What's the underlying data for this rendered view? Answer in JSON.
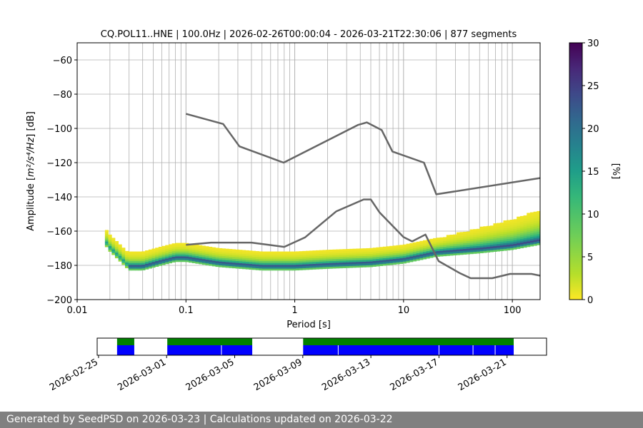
{
  "chart_data": [
    {
      "type": "heatmap",
      "title": "CQ.POL11..HNE | 100.0Hz | 2026-02-26T00:00:04 - 2026-03-21T22:30:06 | 877 segments",
      "xlabel": "Period [s]",
      "ylabel_prefix": "Amplitude [",
      "ylabel_math": "m²/s⁴/Hz",
      "ylabel_suffix": "] [dB]",
      "x_scale": "log",
      "xlim": [
        0.01,
        180
      ],
      "ylim": [
        -200,
        -50
      ],
      "x_tick_labels": [
        "0.01",
        "0.1",
        "1",
        "10",
        "100"
      ],
      "x_ticks": [
        0.01,
        0.1,
        1,
        10,
        100
      ],
      "y_ticks": [
        -200,
        -180,
        -160,
        -140,
        -120,
        -100,
        -80,
        -60
      ],
      "y_tick_labels": [
        "−200",
        "−180",
        "−160",
        "−140",
        "−120",
        "−100",
        "−80",
        "−60"
      ],
      "grid": true,
      "colormap": "viridis_r",
      "colorbar": {
        "label": "[%]",
        "range": [
          0,
          30
        ],
        "ticks": [
          0,
          5,
          10,
          15,
          20,
          25,
          30
        ]
      },
      "density_ridge": [
        {
          "period": 0.018,
          "db": -166
        },
        {
          "period": 0.02,
          "db": -170
        },
        {
          "period": 0.025,
          "db": -176
        },
        {
          "period": 0.03,
          "db": -181
        },
        {
          "period": 0.04,
          "db": -181
        },
        {
          "period": 0.06,
          "db": -178
        },
        {
          "period": 0.08,
          "db": -176
        },
        {
          "period": 0.1,
          "db": -176
        },
        {
          "period": 0.2,
          "db": -179
        },
        {
          "period": 0.5,
          "db": -181
        },
        {
          "period": 1,
          "db": -181
        },
        {
          "period": 2,
          "db": -180
        },
        {
          "period": 5,
          "db": -179
        },
        {
          "period": 10,
          "db": -177
        },
        {
          "period": 20,
          "db": -173
        },
        {
          "period": 50,
          "db": -171
        },
        {
          "period": 100,
          "db": -169
        },
        {
          "period": 180,
          "db": -166
        }
      ],
      "series": [
        {
          "name": "",
          "x": [
            0.1,
            0.22,
            0.31,
            0.79,
            3.8,
            4.6,
            6.3,
            7.9,
            15.4,
            20.0,
            180
          ],
          "y": [
            -91.5,
            -97.4,
            -110.5,
            -120.0,
            -98.0,
            -96.5,
            -101.0,
            -113.5,
            -120.0,
            -138.5,
            -129
          ]
        },
        {
          "name": "",
          "x": [
            0.1,
            0.17,
            0.4,
            0.8,
            1.24,
            2.4,
            4.3,
            5.0,
            6.0,
            10.0,
            12.0,
            15.9,
            21.0,
            32.6,
            41.4,
            65.4,
            95.2,
            150,
            180
          ],
          "y": [
            -168.0,
            -166.7,
            -166.7,
            -169.2,
            -163.7,
            -148.5,
            -141.5,
            -141.5,
            -149.0,
            -163.5,
            -166.0,
            -162.0,
            -177.5,
            -184.4,
            -187.5,
            -187.5,
            -185.0,
            -185.0,
            -186.0
          ]
        }
      ]
    },
    {
      "type": "timeline",
      "x_tick_labels": [
        "2026-02-25",
        "2026-03-01",
        "2026-03-05",
        "2026-03-09",
        "2026-03-13",
        "2026-03-17",
        "2026-03-21"
      ],
      "x_ticks_days_after_feb24": [
        1,
        5,
        9,
        13,
        17,
        21,
        25
      ],
      "xlim_days_after_feb24": [
        0.92,
        27.32
      ],
      "coverage_spans_days_after_feb24": [
        [
          2.09,
          3.1
        ],
        [
          5.04,
          10.03
        ],
        [
          13.02,
          25.39
        ]
      ],
      "segment_dividers_days_after_feb24": [
        8.22,
        15.08,
        21.0,
        23.0,
        24.3
      ],
      "colors": {
        "used": "#008000",
        "available": "#0000ff"
      }
    }
  ],
  "footer": {
    "text": "Generated by SeedPSD on 2026-03-23 | Calculations updated on 2026-03-22"
  }
}
